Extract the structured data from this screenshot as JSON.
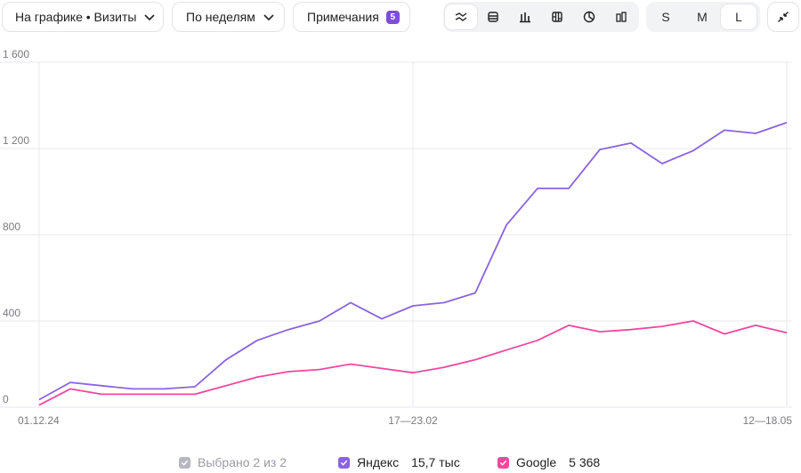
{
  "toolbar": {
    "chart_metric_label": "На графике • Визиты",
    "grouping_label": "По неделям",
    "notes_label": "Примечания",
    "notes_count": "5",
    "chart_type_icons": [
      "line-chart-icon",
      "stacked-area-icon",
      "bar-chart-icon",
      "stacked-bar-icon",
      "pie-chart-icon",
      "column-chart-icon"
    ],
    "active_chart_type": "line-chart-icon",
    "sizes": [
      "S",
      "M",
      "L"
    ],
    "active_size": "L",
    "collapse_icon": "collapse-icon"
  },
  "legend": {
    "selected_label": "Выбрано 2 из 2",
    "items": [
      {
        "name": "Яндекс",
        "total": "15,7 тыс",
        "color": "#8a63e0"
      },
      {
        "name": "Google",
        "total": "5 368",
        "color": "#f0479e"
      }
    ]
  },
  "chart_data": {
    "type": "line",
    "x_tick_labels": [
      "01.12.24",
      "17—23.02",
      "12—18.05"
    ],
    "y_ticks": [
      "0",
      "400",
      "800",
      "1 200",
      "1 600"
    ],
    "ylim": [
      0,
      1600
    ],
    "grid": true,
    "series": [
      {
        "name": "Яндекс",
        "color": "#8a63e0",
        "values": [
          35,
          115,
          100,
          85,
          85,
          95,
          220,
          310,
          360,
          400,
          485,
          410,
          470,
          485,
          530,
          845,
          1015,
          1015,
          1195,
          1225,
          1130,
          1190,
          1285,
          1270,
          1320
        ]
      },
      {
        "name": "Google",
        "color": "#f0479e",
        "values": [
          10,
          85,
          60,
          60,
          60,
          60,
          100,
          140,
          165,
          175,
          200,
          180,
          160,
          185,
          220,
          265,
          310,
          380,
          350,
          360,
          375,
          400,
          340,
          380,
          345
        ]
      }
    ]
  }
}
